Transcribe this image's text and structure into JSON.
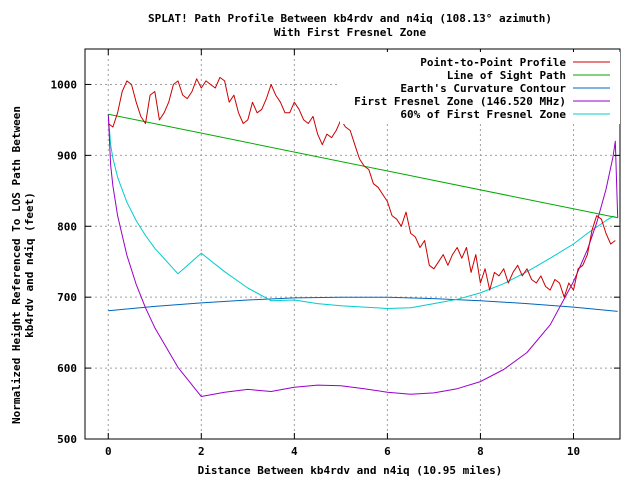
{
  "chart_data": {
    "type": "line",
    "title_line1": "SPLAT! Path Profile Between kb4rdv and n4iq (108.13° azimuth)",
    "title_line2": "With First Fresnel Zone",
    "xlabel": "Distance Between kb4rdv and n4iq (10.95 miles)",
    "ylabel_line1": "Normalized Height Referenced To LOS Path Between",
    "ylabel_line2": "kb4rdv and n4iq (feet)",
    "xlim": [
      -0.5,
      11
    ],
    "ylim": [
      500,
      1050
    ],
    "xticks": [
      0,
      2,
      4,
      6,
      8,
      10
    ],
    "yticks": [
      500,
      600,
      700,
      800,
      900,
      1000
    ],
    "grid": true,
    "legend_position": "top-right",
    "series": [
      {
        "name": "Point-to-Point Profile",
        "color": "#cc0000",
        "x": [
          0,
          0.1,
          0.2,
          0.3,
          0.4,
          0.5,
          0.6,
          0.7,
          0.8,
          0.9,
          1.0,
          1.1,
          1.2,
          1.3,
          1.4,
          1.5,
          1.6,
          1.7,
          1.8,
          1.9,
          2.0,
          2.1,
          2.2,
          2.3,
          2.4,
          2.5,
          2.6,
          2.7,
          2.8,
          2.9,
          3.0,
          3.1,
          3.2,
          3.3,
          3.4,
          3.5,
          3.6,
          3.7,
          3.8,
          3.9,
          4.0,
          4.1,
          4.2,
          4.3,
          4.4,
          4.5,
          4.6,
          4.7,
          4.8,
          4.9,
          5.0,
          5.1,
          5.2,
          5.3,
          5.4,
          5.5,
          5.6,
          5.7,
          5.8,
          5.9,
          6.0,
          6.1,
          6.2,
          6.3,
          6.4,
          6.5,
          6.6,
          6.7,
          6.8,
          6.9,
          7.0,
          7.1,
          7.2,
          7.3,
          7.4,
          7.5,
          7.6,
          7.7,
          7.8,
          7.9,
          8.0,
          8.1,
          8.2,
          8.3,
          8.4,
          8.5,
          8.6,
          8.7,
          8.8,
          8.9,
          9.0,
          9.1,
          9.2,
          9.3,
          9.4,
          9.5,
          9.6,
          9.7,
          9.8,
          9.9,
          10.0,
          10.1,
          10.2,
          10.3,
          10.4,
          10.5,
          10.6,
          10.7,
          10.8,
          10.9
        ],
        "y": [
          945,
          940,
          960,
          990,
          1005,
          1000,
          975,
          955,
          945,
          985,
          990,
          950,
          960,
          975,
          1000,
          1005,
          985,
          980,
          990,
          1008,
          995,
          1005,
          1000,
          995,
          1010,
          1005,
          975,
          985,
          960,
          945,
          950,
          975,
          960,
          965,
          980,
          1000,
          985,
          975,
          960,
          960,
          975,
          965,
          950,
          945,
          955,
          930,
          915,
          930,
          925,
          935,
          950,
          940,
          935,
          915,
          895,
          885,
          880,
          860,
          855,
          845,
          835,
          815,
          810,
          800,
          820,
          790,
          785,
          770,
          780,
          745,
          740,
          750,
          760,
          745,
          760,
          770,
          755,
          770,
          735,
          760,
          720,
          740,
          710,
          735,
          730,
          740,
          720,
          735,
          745,
          730,
          740,
          725,
          720,
          730,
          715,
          710,
          725,
          720,
          700,
          720,
          710,
          740,
          745,
          760,
          795,
          815,
          810,
          790,
          775,
          780
        ]
      },
      {
        "name": "Line of Sight Path",
        "color": "#00aa00",
        "x": [
          0,
          10.95
        ],
        "y": [
          958,
          812
        ]
      },
      {
        "name": "Earth's Curvature Contour",
        "color": "#0066bb",
        "x": [
          0,
          1,
          2,
          3,
          4,
          5,
          5.475,
          6,
          7,
          8,
          9,
          10,
          10.95
        ],
        "y": [
          681,
          687,
          692,
          696,
          699,
          700,
          700,
          700,
          698,
          695,
          691,
          686,
          680
        ]
      },
      {
        "name": "First Fresnel Zone (146.520 MHz)",
        "color": "#9900cc",
        "x": [
          0,
          0.05,
          0.1,
          0.2,
          0.4,
          0.6,
          0.8,
          1.0,
          1.5,
          2.0,
          2.5,
          3.0,
          3.5,
          4.0,
          4.5,
          5.0,
          5.5,
          6.0,
          6.5,
          7.0,
          7.5,
          8.0,
          8.5,
          9.0,
          9.5,
          10.0,
          10.3,
          10.5,
          10.7,
          10.85,
          10.9,
          10.95
        ],
        "y": [
          958,
          887,
          857,
          815,
          759,
          718,
          685,
          657,
          601,
          560,
          566,
          570,
          567,
          573,
          576,
          575,
          571,
          566,
          563,
          565,
          571,
          581,
          598,
          622,
          661,
          722,
          767,
          805,
          852,
          898,
          920,
          812
        ]
      },
      {
        "name": "60% of First Fresnel Zone",
        "color": "#00cccc",
        "x": [
          0,
          0.05,
          0.1,
          0.2,
          0.4,
          0.6,
          0.8,
          1.0,
          1.5,
          2.0,
          2.5,
          3.0,
          3.5,
          4.0,
          4.5,
          5.0,
          5.5,
          6.0,
          6.5,
          7.0,
          7.5,
          8.0,
          8.5,
          9.0,
          9.5,
          10.0,
          10.3,
          10.5,
          10.7,
          10.85,
          10.95
        ],
        "y": [
          958,
          915,
          896,
          869,
          834,
          808,
          787,
          769,
          733,
          762,
          736,
          713,
          695,
          696,
          691,
          688,
          686,
          684,
          685,
          691,
          697,
          706,
          719,
          736,
          755,
          775,
          790,
          799,
          808,
          814,
          812
        ]
      }
    ]
  }
}
